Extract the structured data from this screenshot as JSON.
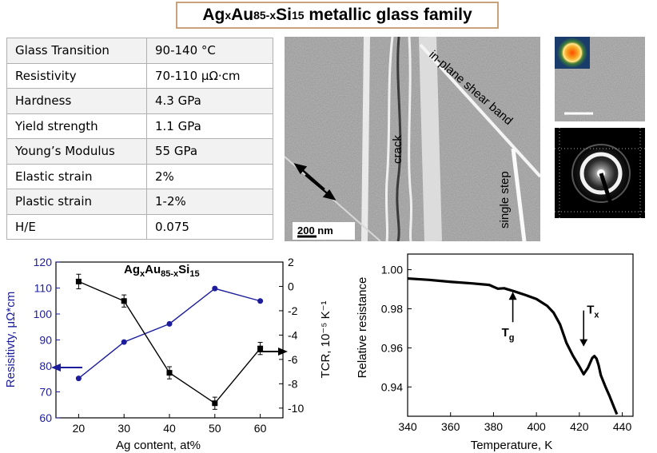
{
  "title": {
    "base_ag": "Ag",
    "sub_x": "x",
    "base_au": "Au",
    "sub_85x": "85-x",
    "base_si": "Si",
    "sub_15": "15",
    "rest": " metallic glass family"
  },
  "properties": [
    {
      "name": "Glass Transition",
      "value": "90-140 °C"
    },
    {
      "name": "Resistivity",
      "value": "70-110 μΩ·cm"
    },
    {
      "name": "Hardness",
      "value": "4.3 GPa"
    },
    {
      "name": "Yield strength",
      "value": "1.1 GPa"
    },
    {
      "name": "Young’s Modulus",
      "value": "55 GPa"
    },
    {
      "name": "Elastic strain",
      "value": "2%"
    },
    {
      "name": "Plastic strain",
      "value": "1-2%"
    },
    {
      "name": "H/E",
      "value": "0.075"
    }
  ],
  "micrograph": {
    "labels": {
      "crack": "crack",
      "shear_band": "in-plane shear band",
      "single_step": "single step"
    },
    "scale_bar": "200 nm"
  },
  "chart_data": [
    {
      "type": "line",
      "title": "AgxAu85-xSi15",
      "title_parts": {
        "ag": "Ag",
        "x": "x",
        "au": "Au",
        "n": "85-x",
        "si": "Si",
        "m": "15"
      },
      "xlabel": "Ag content, at%",
      "ylabel": "Resisitivty, μΩ*cm",
      "y2label": "TCR, 10⁻⁵ K⁻¹",
      "xlim": [
        15,
        65
      ],
      "ylim": [
        60,
        120
      ],
      "y2lim": [
        -10.8,
        2
      ],
      "xticks": [
        20,
        30,
        40,
        50,
        60
      ],
      "yticks": [
        60,
        70,
        80,
        90,
        100,
        110,
        120
      ],
      "y2ticks": [
        2,
        0,
        -2,
        -4,
        -6,
        -8,
        -10
      ],
      "series": [
        {
          "axis": "left",
          "color": "#1c1c9c",
          "marker": "circle",
          "x": [
            20,
            30,
            40,
            50,
            60
          ],
          "values": [
            75.2,
            89.2,
            96.2,
            109.8,
            105
          ]
        },
        {
          "axis": "right",
          "color": "#000000",
          "marker": "square",
          "x": [
            20,
            30,
            40,
            50,
            60
          ],
          "values": [
            0.4,
            -1.2,
            -7.1,
            -9.6,
            -5.1
          ],
          "errors": [
            0.6,
            0.5,
            0.5,
            0.5,
            0.5
          ]
        }
      ]
    },
    {
      "type": "line",
      "xlabel": "Temperature, K",
      "ylabel": "Relative resistance",
      "xlim": [
        340,
        445
      ],
      "ylim": [
        0.925,
        1.008
      ],
      "xticks": [
        340,
        360,
        380,
        400,
        420,
        440
      ],
      "yticks": [
        0.94,
        0.96,
        0.98,
        1.0
      ],
      "ytick_labels": [
        "0.94",
        "0.96",
        "0.98",
        "1.00"
      ],
      "annotations": [
        {
          "text": "T",
          "sub": "g",
          "x": 389,
          "y": 0.9895
        },
        {
          "text": "T",
          "sub": "x",
          "x": 422,
          "y": 0.9595
        }
      ],
      "series": [
        {
          "color": "#000000",
          "x": [
            340,
            350,
            360,
            370,
            378,
            382,
            385,
            390,
            395,
            400,
            405,
            408,
            411,
            414,
            417,
            420,
            422,
            424,
            426,
            427,
            428,
            429,
            430,
            432,
            434,
            436,
            437.5
          ],
          "values": [
            0.9955,
            0.9948,
            0.9938,
            0.993,
            0.9922,
            0.9903,
            0.9905,
            0.9888,
            0.987,
            0.985,
            0.9815,
            0.978,
            0.972,
            0.9625,
            0.956,
            0.9505,
            0.9465,
            0.9498,
            0.9548,
            0.9558,
            0.9545,
            0.951,
            0.946,
            0.9405,
            0.9355,
            0.93,
            0.926
          ]
        }
      ]
    }
  ]
}
